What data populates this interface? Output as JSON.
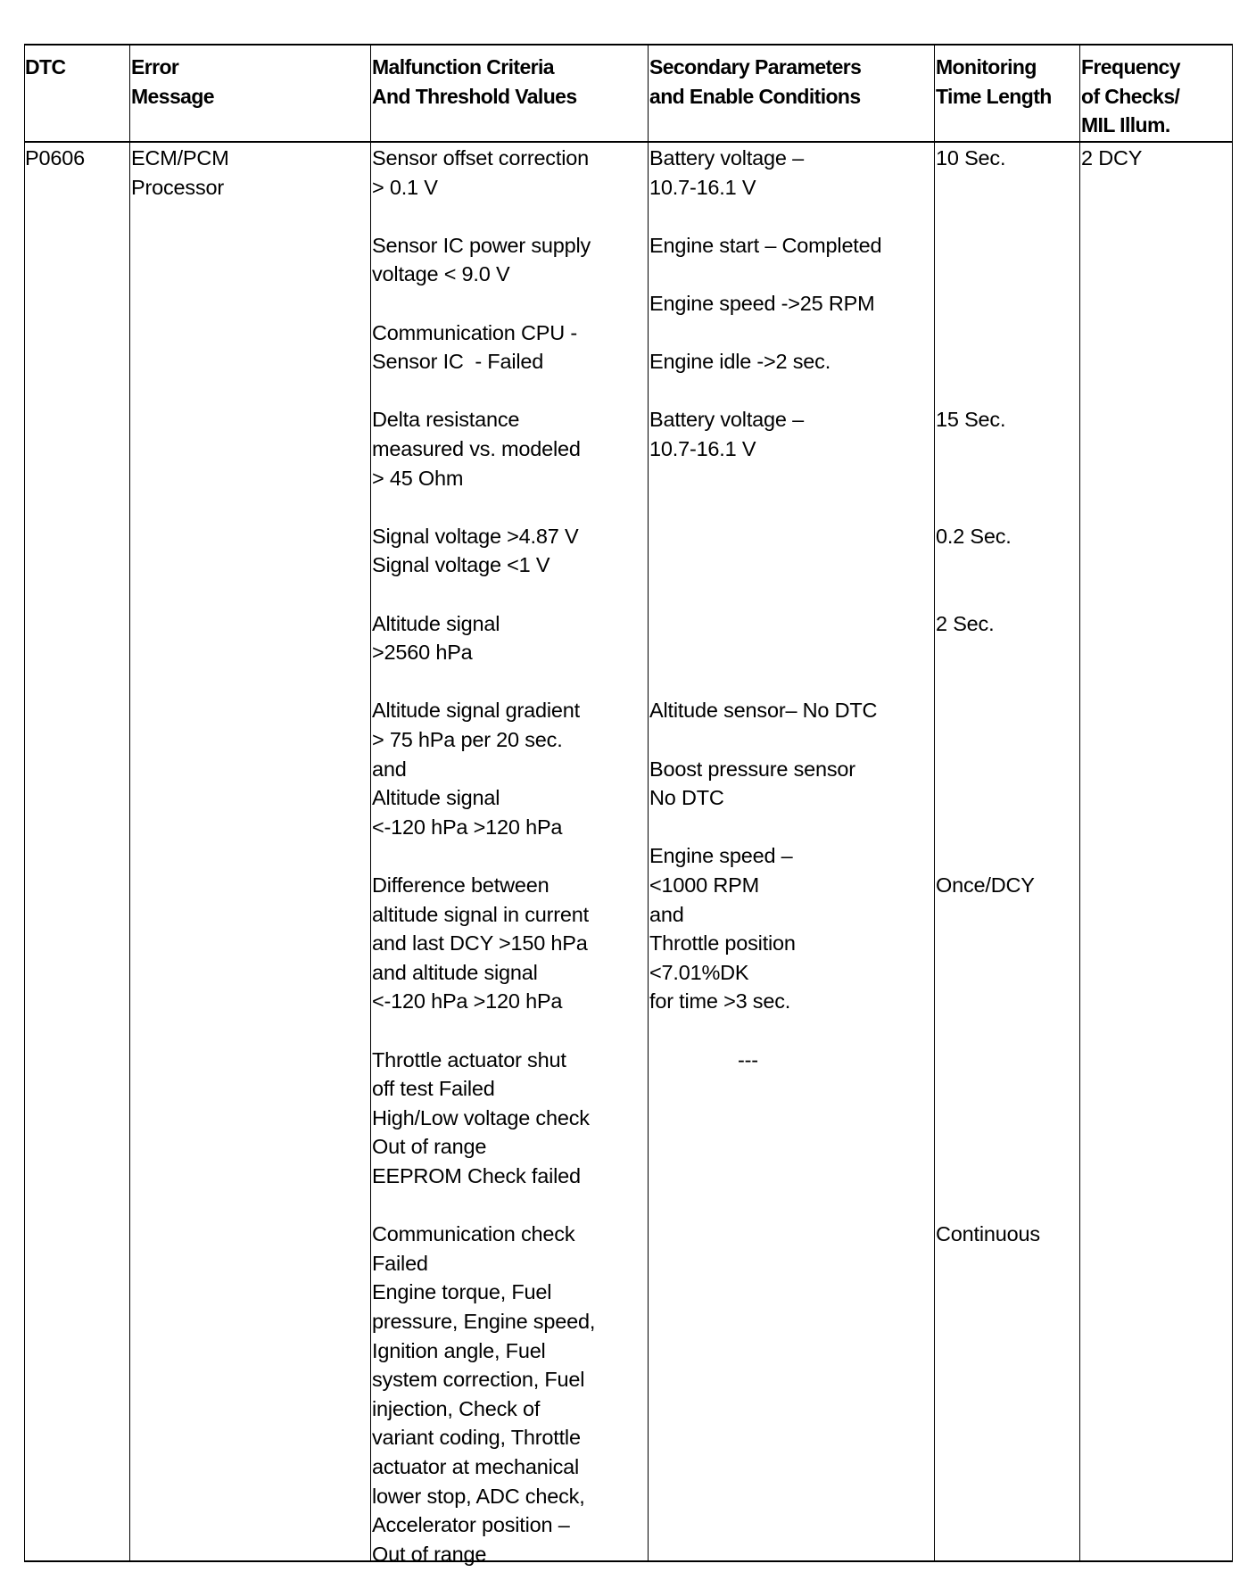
{
  "table": {
    "headers": [
      "DTC",
      "Error\nMessage",
      "Malfunction Criteria\nAnd Threshold Values",
      "Secondary Parameters\nand Enable Conditions",
      "Monitoring\nTime Length",
      "Frequency\nof Checks/\nMIL Illum."
    ],
    "row": {
      "dtc": [
        "P0606"
      ],
      "error_message": [
        "ECM/PCM\nProcessor"
      ],
      "malfunction_criteria": [
        "Sensor offset correction\n> 0.1 V",
        "Sensor IC power supply\nvoltage < 9.0 V",
        "Communication CPU -\nSensor IC  - Failed",
        "Delta resistance\nmeasured vs. modeled\n> 45 Ohm",
        "Signal voltage >4.87 V\nSignal voltage <1 V",
        "Altitude signal\n>2560 hPa",
        "Altitude signal gradient\n> 75 hPa per 20 sec.\nand\nAltitude signal\n<-120 hPa >120 hPa",
        "Difference between\naltitude signal in current\nand last DCY >150 hPa\nand altitude signal\n<-120 hPa >120 hPa",
        "Throttle actuator shut\noff test Failed\nHigh/Low voltage check\nOut of range\nEEPROM Check failed",
        "Communication check\nFailed\nEngine torque, Fuel\npressure, Engine speed,\nIgnition angle, Fuel\nsystem correction, Fuel\ninjection, Check of\nvariant coding, Throttle\nactuator at mechanical\nlower stop, ADC check,\nAccelerator position –\nOut of range"
      ],
      "secondary_parameters": [
        "Battery voltage –\n10.7-16.1 V",
        "Engine start – Completed",
        "Engine speed ->25 RPM",
        "Engine idle ->2 sec.",
        "Battery voltage –\n10.7-16.1 V",
        "Altitude sensor– No DTC",
        "Boost pressure sensor\nNo DTC",
        "Engine speed –\n<1000 RPM\nand\nThrottle position\n<7.01%DK\nfor time >3 sec.",
        "---"
      ],
      "monitoring_time": [
        "10 Sec.",
        "15 Sec.",
        "0.2 Sec.",
        "2 Sec.",
        "Once/DCY",
        "Continuous"
      ],
      "frequency": [
        "2 DCY"
      ]
    }
  }
}
